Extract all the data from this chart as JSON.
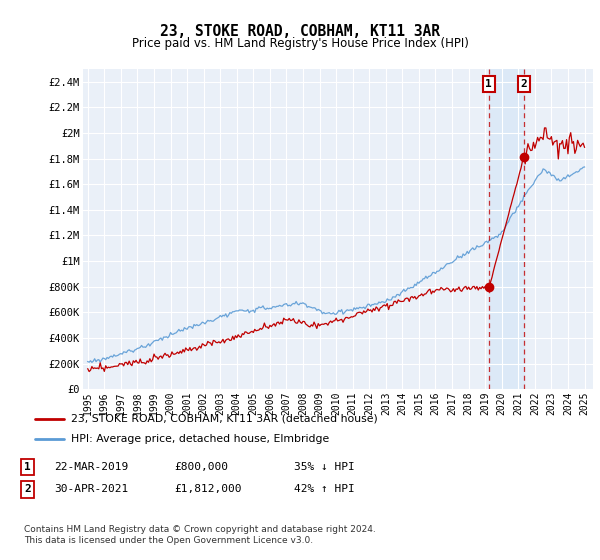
{
  "title": "23, STOKE ROAD, COBHAM, KT11 3AR",
  "subtitle": "Price paid vs. HM Land Registry's House Price Index (HPI)",
  "ylabel_ticks": [
    "£0",
    "£200K",
    "£400K",
    "£600K",
    "£800K",
    "£1M",
    "£1.2M",
    "£1.4M",
    "£1.6M",
    "£1.8M",
    "£2M",
    "£2.2M",
    "£2.4M"
  ],
  "ytick_vals": [
    0,
    200000,
    400000,
    600000,
    800000,
    1000000,
    1200000,
    1400000,
    1600000,
    1800000,
    2000000,
    2200000,
    2400000
  ],
  "ylim": [
    0,
    2500000
  ],
  "hpi_color": "#5b9bd5",
  "price_color": "#c00000",
  "shade_color": "#dce9f7",
  "marker1_year": 2019.22,
  "marker2_year": 2021.33,
  "marker1_price": 800000,
  "marker2_price": 1812000,
  "annotation1": [
    "1",
    "22-MAR-2019",
    "£800,000",
    "35% ↓ HPI"
  ],
  "annotation2": [
    "2",
    "30-APR-2021",
    "£1,812,000",
    "42% ↑ HPI"
  ],
  "legend_price": "23, STOKE ROAD, COBHAM, KT11 3AR (detached house)",
  "legend_hpi": "HPI: Average price, detached house, Elmbridge",
  "footnote": "Contains HM Land Registry data © Crown copyright and database right 2024.\nThis data is licensed under the Open Government Licence v3.0.",
  "background_color": "#ffffff",
  "plot_bg_color": "#eaf0f8",
  "grid_color": "#ffffff",
  "xticklabels": [
    "1995",
    "1996",
    "1997",
    "1998",
    "1999",
    "2000",
    "2001",
    "2002",
    "2003",
    "2004",
    "2005",
    "2006",
    "2007",
    "2008",
    "2009",
    "2010",
    "2011",
    "2012",
    "2013",
    "2014",
    "2015",
    "2016",
    "2017",
    "2018",
    "2019",
    "2020",
    "2021",
    "2022",
    "2023",
    "2024",
    "2025"
  ],
  "xlim_left": 1994.7,
  "xlim_right": 2025.5
}
